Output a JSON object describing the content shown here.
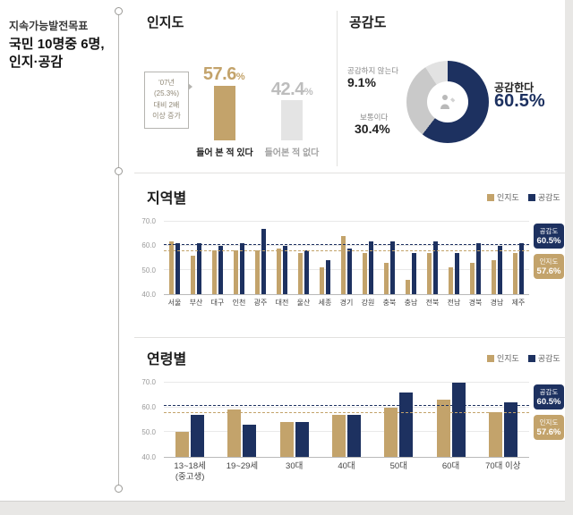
{
  "colors": {
    "tan": "#c3a36b",
    "navy": "#1d3160",
    "gray_bar": "#e4e4e4",
    "gray_value": "#bdbdbd",
    "donut_neutral": "#c9c9c9",
    "donut_disagree": "#e2e2e2"
  },
  "sidebar": {
    "eyebrow": "지속가능발전목표",
    "line1": "국민 10명중 6명,",
    "line2": "인지·공감"
  },
  "awareness": {
    "title": "인지도",
    "callout_lines": [
      "'07년",
      "(25.3%)",
      "대비 2배",
      "이상 증가"
    ],
    "bars": [
      {
        "label": "들어 본 적 있다",
        "display": "57.6"
      },
      {
        "label": "들어본 적 없다",
        "display": "42.4"
      }
    ]
  },
  "empathy": {
    "title": "공감도",
    "disagree_label": "공감하지 않는다",
    "disagree_value": "9.1%",
    "neutral_label": "보통이다",
    "neutral_value": "30.4%",
    "agree_label": "공감한다",
    "agree_value": "60.5%"
  },
  "legend": [
    {
      "label": "인지도",
      "color": "#c3a36b"
    },
    {
      "label": "공감도",
      "color": "#1d3160"
    }
  ],
  "ref_badges": [
    {
      "label": "공감도",
      "value": "60.5%",
      "color": "#1d3160"
    },
    {
      "label": "인지도",
      "value": "57.6%",
      "color": "#c3a36b"
    }
  ],
  "region": {
    "title": "지역별"
  },
  "age": {
    "title": "연령별"
  },
  "chart_data": [
    {
      "type": "bar",
      "title": "인지도",
      "unit": "%",
      "categories": [
        "들어 본 적 있다",
        "들어본 적 없다"
      ],
      "values": [
        57.6,
        42.4
      ],
      "annotation": "'07년 (25.3%) 대비 2배 이상 증가"
    },
    {
      "type": "pie",
      "title": "공감도",
      "unit": "%",
      "categories": [
        "공감한다",
        "보통이다",
        "공감하지 않는다"
      ],
      "values": [
        60.5,
        30.4,
        9.1
      ],
      "colors": [
        "#1d3160",
        "#c9c9c9",
        "#e2e2e2"
      ]
    },
    {
      "type": "bar",
      "title": "지역별",
      "categories": [
        "서울",
        "부산",
        "대구",
        "인천",
        "광주",
        "대전",
        "울산",
        "세종",
        "경기",
        "강원",
        "충북",
        "충남",
        "전북",
        "전남",
        "경북",
        "경남",
        "제주"
      ],
      "series": [
        {
          "name": "인지도",
          "color": "#c3a36b",
          "values": [
            62,
            56,
            58,
            58,
            58,
            59,
            57,
            51,
            64,
            57,
            53,
            46,
            57,
            51,
            53,
            54,
            57
          ]
        },
        {
          "name": "공감도",
          "color": "#1d3160",
          "values": [
            61,
            61,
            60,
            61,
            67,
            60,
            58,
            54,
            59,
            62,
            62,
            57,
            62,
            57,
            61,
            60,
            61
          ]
        }
      ],
      "ylim": [
        40,
        70
      ],
      "yticks": [
        40,
        50,
        60,
        70
      ],
      "reference_lines": [
        {
          "label": "공감도",
          "value": 60.5,
          "color": "#1d3160"
        },
        {
          "label": "인지도",
          "value": 57.6,
          "color": "#c3a36b"
        }
      ],
      "legend_position": "top-right",
      "grid": true
    },
    {
      "type": "bar",
      "title": "연령별",
      "categories": [
        "13~18세\n(중고생)",
        "19~29세",
        "30대",
        "40대",
        "50대",
        "60대",
        "70대 이상"
      ],
      "series": [
        {
          "name": "인지도",
          "color": "#c3a36b",
          "values": [
            50,
            59,
            54,
            57,
            60,
            63,
            58
          ]
        },
        {
          "name": "공감도",
          "color": "#1d3160",
          "values": [
            57,
            53,
            54,
            57,
            66,
            70,
            62
          ]
        }
      ],
      "ylim": [
        40,
        70
      ],
      "yticks": [
        40,
        50,
        60,
        70
      ],
      "reference_lines": [
        {
          "label": "공감도",
          "value": 60.5,
          "color": "#1d3160"
        },
        {
          "label": "인지도",
          "value": 57.6,
          "color": "#c3a36b"
        }
      ],
      "legend_position": "top-right",
      "grid": true
    }
  ]
}
